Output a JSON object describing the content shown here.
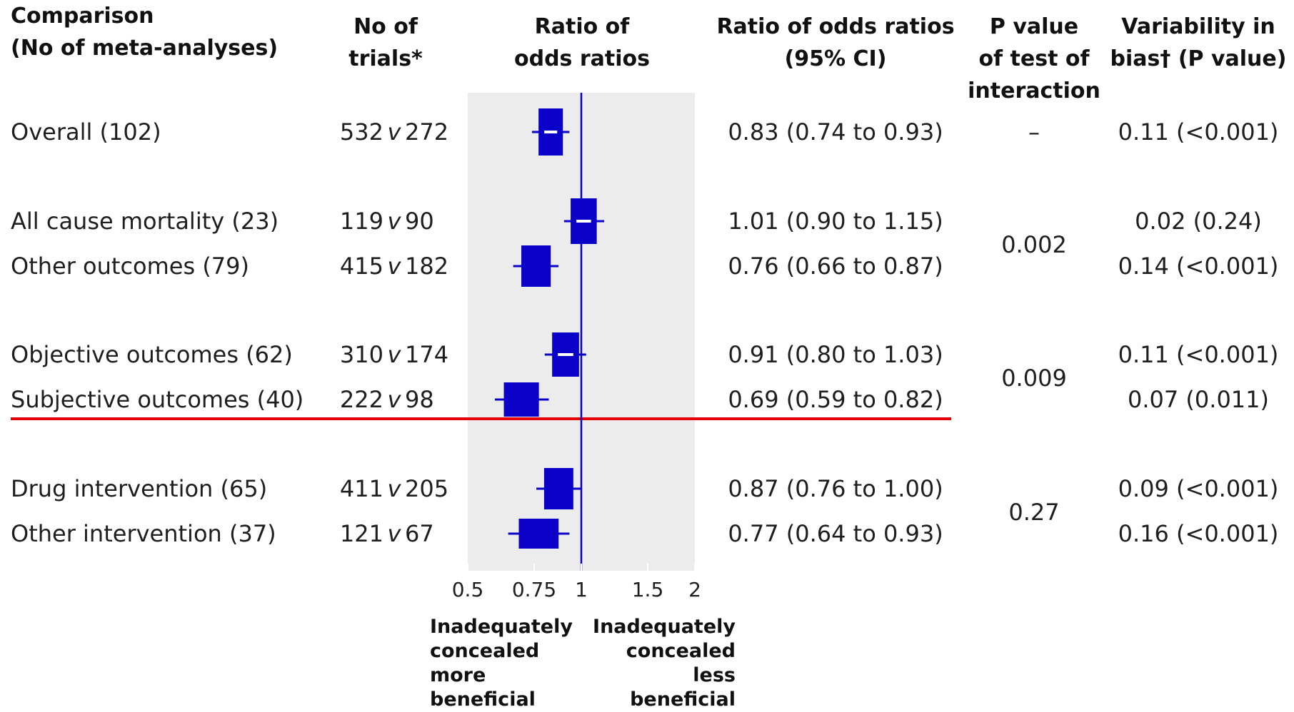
{
  "headers": {
    "comparison": "Comparison\n(No of meta-analyses)",
    "trials": "No of\ntrials*",
    "ror": "Ratio of\nodds ratios",
    "ror_ci": "Ratio of odds ratios\n(95% CI)",
    "p_interaction": "P value\nof test of\ninteraction",
    "variability": "Variability in\nbias† (P value)"
  },
  "rows": [
    {
      "label": "Overall (102)",
      "trials_a": "532",
      "trials_b": "272",
      "ci": "0.83 (0.74 to 0.93)",
      "variability": "0.11 (<0.001)"
    },
    {
      "label": "All cause mortality (23)",
      "trials_a": "119",
      "trials_b": "90",
      "ci": "1.01 (0.90 to 1.15)",
      "variability": "0.02 (0.24)"
    },
    {
      "label": "Other outcomes (79)",
      "trials_a": "415",
      "trials_b": "182",
      "ci": "0.76 (0.66 to 0.87)",
      "variability": "0.14 (<0.001)"
    },
    {
      "label": "Objective outcomes (62)",
      "trials_a": "310",
      "trials_b": "174",
      "ci": "0.91 (0.80 to 1.03)",
      "variability": "0.11 (<0.001)"
    },
    {
      "label": "Subjective outcomes (40)",
      "trials_a": "222",
      "trials_b": "98",
      "ci": "0.69 (0.59 to 0.82)",
      "variability": "0.07 (0.011)"
    },
    {
      "label": "Drug intervention (65)",
      "trials_a": "411",
      "trials_b": "205",
      "ci": "0.87 (0.76 to 1.00)",
      "variability": "0.09 (<0.001)"
    },
    {
      "label": "Other intervention (37)",
      "trials_a": "121",
      "trials_b": "67",
      "ci": "0.77 (0.64 to 0.93)",
      "variability": "0.16 (<0.001)"
    }
  ],
  "trials_sep": "v",
  "p_interaction": {
    "overall": "–",
    "mortality": "0.002",
    "objective": "0.009",
    "drug": "0.27"
  },
  "footer": {
    "left": "Inadequately\nconcealed\nmore\nbeneficial",
    "right": "Inadequately\nconcealed\nless\nbeneficial"
  },
  "colors": {
    "marker": "#0a00c8",
    "panel": "#ececec",
    "highlight_line": "#e60000",
    "reference_line": "#0a00c8"
  },
  "chart_data": {
    "type": "forest",
    "xscale": "log",
    "xlim": [
      0.5,
      2
    ],
    "xticks": [
      0.5,
      0.75,
      1,
      1.5,
      2
    ],
    "xtick_labels": [
      "0.5",
      "0.75",
      "1",
      "1.5",
      "2"
    ],
    "reference_value": 1,
    "categories": [
      "Overall (102)",
      "All cause mortality (23)",
      "Other outcomes (79)",
      "Objective outcomes (62)",
      "Subjective outcomes (40)",
      "Drug intervention (65)",
      "Other intervention (37)"
    ],
    "estimates": [
      0.83,
      1.01,
      0.76,
      0.91,
      0.69,
      0.87,
      0.77
    ],
    "ci_lower": [
      0.74,
      0.9,
      0.66,
      0.8,
      0.59,
      0.76,
      0.64
    ],
    "ci_upper": [
      0.93,
      1.15,
      0.87,
      1.03,
      0.82,
      1.0,
      0.93
    ]
  }
}
